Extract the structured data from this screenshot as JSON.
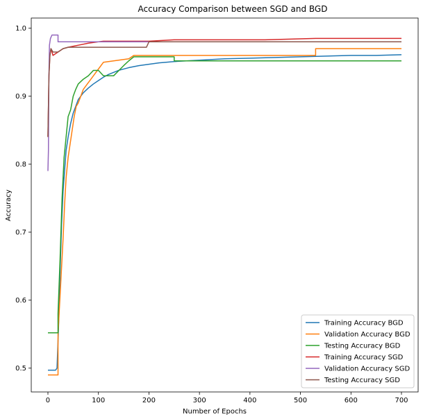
{
  "chart_data": {
    "type": "line",
    "title": "Accuracy Comparison between SGD and BGD",
    "xlabel": "Number of Epochs",
    "ylabel": "Accuracy",
    "xlim": [
      -33,
      733
    ],
    "ylim": [
      0.465,
      1.015
    ],
    "xticks": [
      0,
      100,
      200,
      300,
      400,
      500,
      600,
      700
    ],
    "yticks": [
      0.5,
      0.6,
      0.7,
      0.8,
      0.9,
      1.0
    ],
    "ytick_labels": [
      "0.5",
      "0.6",
      "0.7",
      "0.8",
      "0.9",
      "1.0"
    ],
    "grid": false,
    "legend_position": "lower-right",
    "series": [
      {
        "name": "Training Accuracy BGD",
        "color": "#1f77b4",
        "x": [
          0,
          12,
          12,
          15,
          18,
          21,
          24,
          27,
          30,
          33,
          36,
          40,
          45,
          50,
          55,
          60,
          70,
          80,
          90,
          100,
          110,
          120,
          140,
          160,
          180,
          200,
          220,
          250,
          300,
          350,
          400,
          450,
          500,
          550,
          600,
          650,
          700
        ],
        "y": [
          0.497,
          0.497,
          0.497,
          0.497,
          0.5,
          0.56,
          0.64,
          0.71,
          0.76,
          0.79,
          0.82,
          0.84,
          0.86,
          0.875,
          0.885,
          0.895,
          0.905,
          0.912,
          0.918,
          0.923,
          0.928,
          0.932,
          0.938,
          0.942,
          0.945,
          0.947,
          0.949,
          0.951,
          0.953,
          0.955,
          0.956,
          0.957,
          0.958,
          0.959,
          0.96,
          0.96,
          0.961
        ]
      },
      {
        "name": "Validation Accuracy BGD",
        "color": "#ff7f0e",
        "x": [
          0,
          20,
          20,
          25,
          30,
          33,
          36,
          40,
          44,
          48,
          52,
          56,
          60,
          65,
          70,
          80,
          90,
          100,
          110,
          160,
          170,
          250,
          530,
          530,
          700
        ],
        "y": [
          0.49,
          0.49,
          0.55,
          0.62,
          0.69,
          0.74,
          0.78,
          0.81,
          0.83,
          0.85,
          0.87,
          0.885,
          0.89,
          0.9,
          0.91,
          0.92,
          0.93,
          0.94,
          0.95,
          0.955,
          0.96,
          0.96,
          0.96,
          0.97,
          0.97
        ]
      },
      {
        "name": "Testing Accuracy BGD",
        "color": "#2ca02c",
        "x": [
          0,
          20,
          20,
          24,
          28,
          32,
          36,
          40,
          45,
          50,
          55,
          60,
          70,
          80,
          90,
          100,
          110,
          130,
          150,
          160,
          170,
          200,
          250,
          250,
          700
        ],
        "y": [
          0.552,
          0.552,
          0.58,
          0.66,
          0.75,
          0.81,
          0.84,
          0.87,
          0.88,
          0.9,
          0.91,
          0.918,
          0.925,
          0.93,
          0.938,
          0.938,
          0.93,
          0.93,
          0.945,
          0.952,
          0.958,
          0.958,
          0.958,
          0.952,
          0.952
        ]
      },
      {
        "name": "Training Accuracy SGD",
        "color": "#d62728",
        "x": [
          0,
          2,
          4,
          6,
          10,
          20,
          30,
          40,
          60,
          80,
          100,
          110,
          200,
          250,
          430,
          530,
          700
        ],
        "y": [
          0.84,
          0.93,
          0.96,
          0.97,
          0.96,
          0.965,
          0.97,
          0.972,
          0.975,
          0.978,
          0.98,
          0.981,
          0.981,
          0.983,
          0.983,
          0.985,
          0.985
        ]
      },
      {
        "name": "Validation Accuracy SGD",
        "color": "#9467bd",
        "x": [
          0,
          1,
          2,
          3,
          5,
          8,
          10,
          18,
          20,
          20,
          700
        ],
        "y": [
          0.79,
          0.82,
          0.93,
          0.975,
          0.985,
          0.99,
          0.99,
          0.99,
          0.99,
          0.98,
          0.98
        ]
      },
      {
        "name": "Testing Accuracy SGD",
        "color": "#8c564b",
        "x": [
          0,
          2,
          4,
          6,
          10,
          20,
          30,
          40,
          60,
          80,
          100,
          150,
          195,
          200,
          700
        ],
        "y": [
          0.84,
          0.93,
          0.96,
          0.97,
          0.965,
          0.965,
          0.97,
          0.972,
          0.972,
          0.972,
          0.972,
          0.972,
          0.972,
          0.98,
          0.98
        ]
      }
    ]
  }
}
